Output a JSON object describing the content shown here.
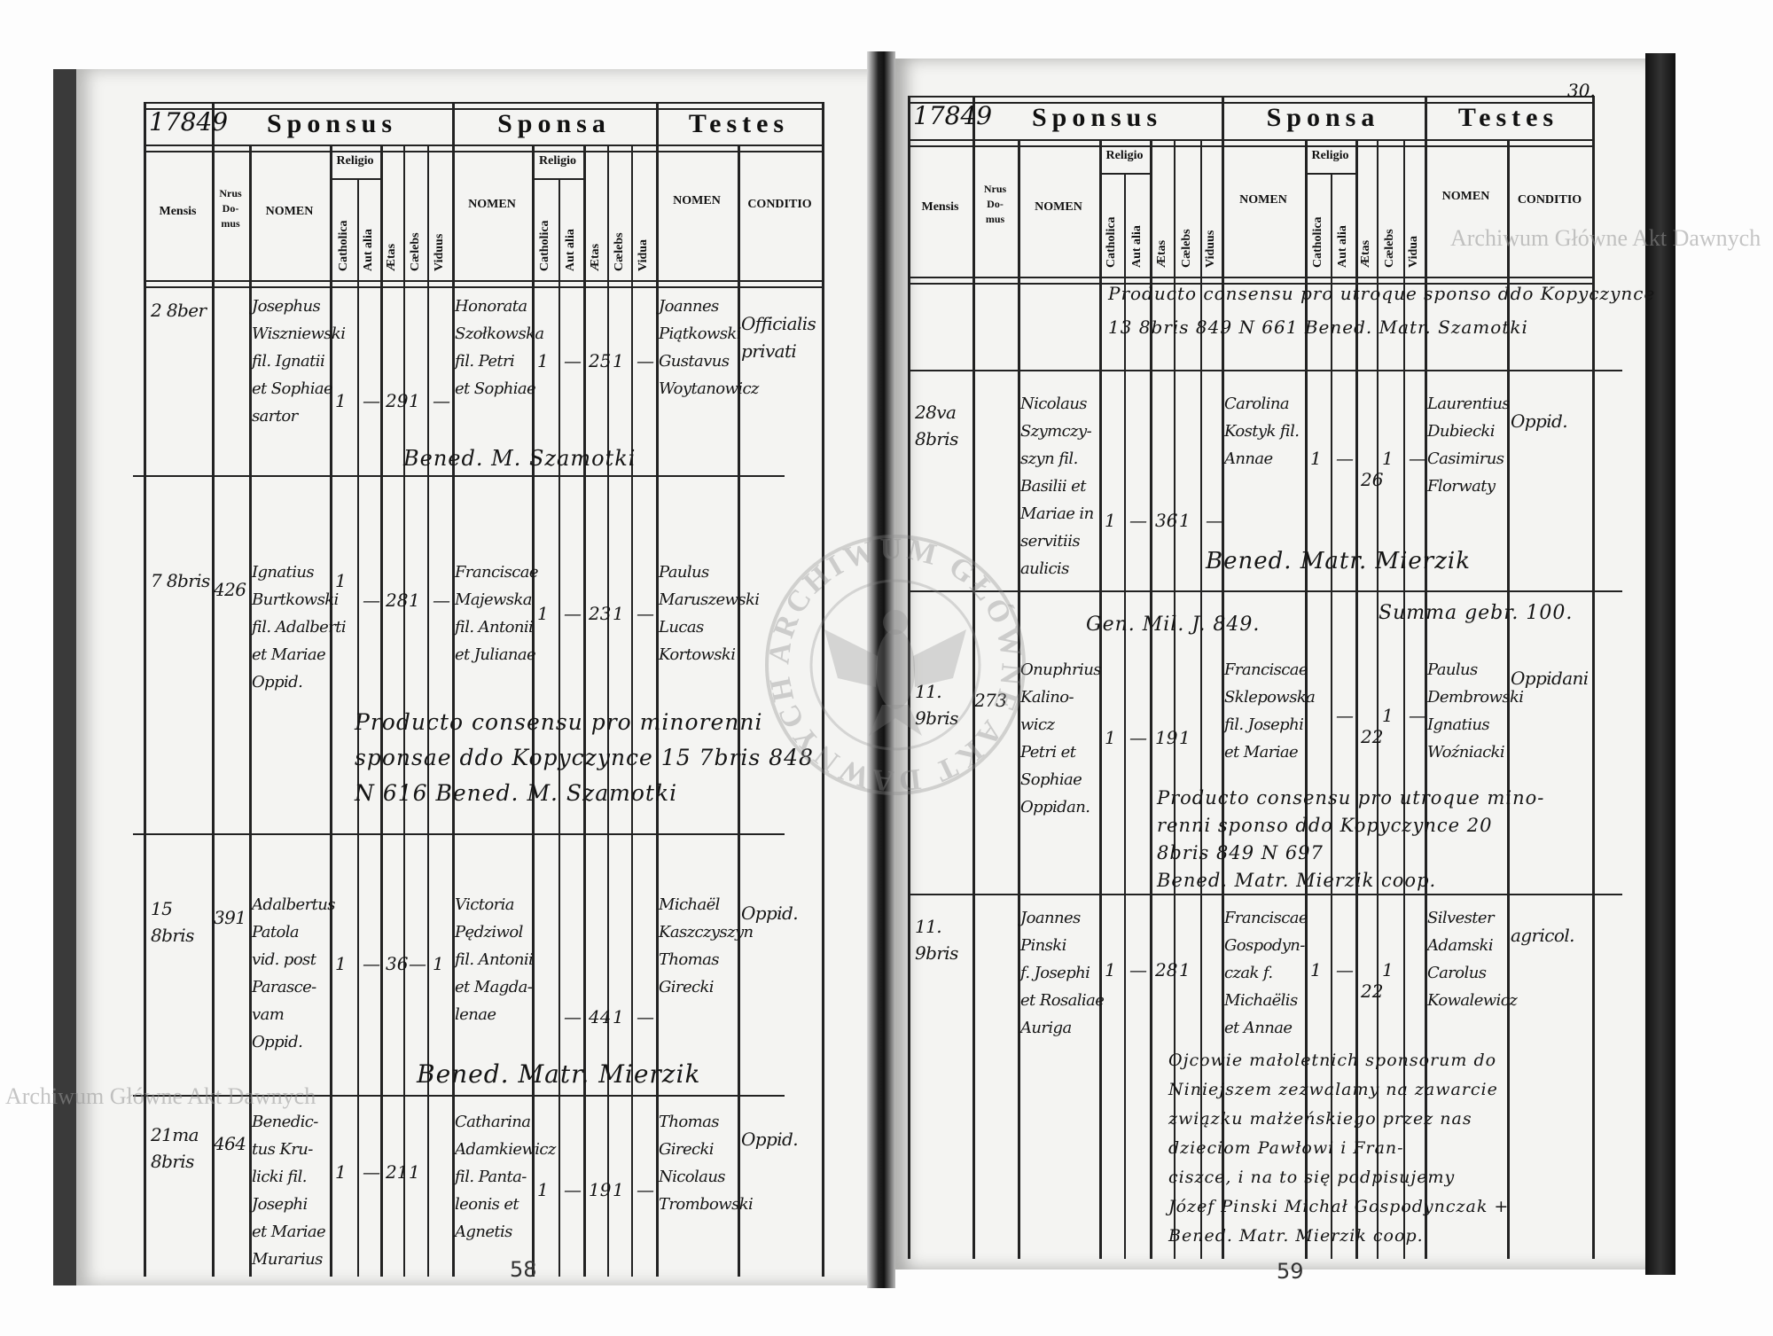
{
  "watermark": "Archiwum Główne Akt Dawnych",
  "stamp_text": "ARCHIWUM GŁÓWNE AKT DAWNYCH",
  "header": {
    "year": "17849",
    "sponsus": "Sponsus",
    "sponsa": "Sponsa",
    "testes": "Testes",
    "mensis": "Mensis",
    "nrus_domus": "Nrus\nDo-\nmus",
    "nomen": "NOMEN",
    "religio": "Religio",
    "catholica": "Catholica",
    "aut_alia": "Aut alia",
    "aetas": "Ætas",
    "caelebs": "Cælebs",
    "viduus": "Viduus",
    "vidua": "Vidua",
    "conditio": "CONDITIO"
  },
  "left_page": {
    "page_number": "58",
    "entries": [
      {
        "mensis": "2 8ber",
        "nrus": "",
        "sponsus": "Josephus\nWiszniewski\nfil. Ignatii\net Sophiae\nsartor",
        "sponsus_marks": [
          "1",
          "—",
          "29",
          "1",
          "—"
        ],
        "sponsa": "Honorata\nSzołkowska\nfil. Petri\net Sophiae",
        "sponsa_marks": [
          "1",
          "—",
          "25",
          "1",
          "—"
        ],
        "testes": "Joannes\nPiątkowski\nGustavus\nWoytanowicz",
        "conditio": "Officialis\nprivati"
      },
      {
        "mensis": "7 8bris",
        "nrus": "426",
        "sponsus": "Ignatius\nBurtkowski\nfil. Adalberti\net Mariae\nOppid.",
        "sponsus_marks": [
          "1",
          "—",
          "28",
          "1",
          "—"
        ],
        "sponsa": "Franciscae\nMajewska\nfil. Antonii\net Julianae",
        "sponsa_marks": [
          "1",
          "—",
          "23",
          "1",
          "—"
        ],
        "testes": "Paulus\nMaruszewski\nLucas\nKortowski",
        "conditio": ""
      },
      {
        "mensis": "15 8bris",
        "nrus": "391",
        "sponsus": "Adalbertus\nPatola\nvid. post\nParasce-\nvam\nOppid.",
        "sponsus_marks": [
          "1",
          "—",
          "36",
          "—",
          "1"
        ],
        "sponsa": "Victoria\nPędziwol\nfil. Antonii\net Magda-\nlenae",
        "sponsa_marks": [
          "",
          "—",
          "44",
          "1",
          "—"
        ],
        "testes": "Michaël\nKaszczyszyn\nThomas\nGirecki",
        "conditio": "Oppid."
      },
      {
        "mensis": "21ma 8bris",
        "nrus": "464",
        "sponsus": "Benedic-\ntus Kru-\nlicki fil.\nJosephi\net Mariae\nMurarius",
        "sponsus_marks": [
          "1",
          "—",
          "21",
          "1",
          ""
        ],
        "sponsa": "Catharina\nAdamkiewicz\nfil. Panta-\nleonis et\nAgnetis",
        "sponsa_marks": [
          "1",
          "—",
          "19",
          "1",
          "—"
        ],
        "testes": "Thomas\nGirecki\nNicolaus\nTrombowski",
        "conditio": "Oppid."
      }
    ],
    "notes": [
      "Bened. M. Szamotki",
      "Producto consensu pro minorenni\nsponsae ddo Kopyczynce 15 7bris 848\nN 616   Bened. M. Szamotki",
      "Bened. Matr. Mierzik"
    ]
  },
  "right_page": {
    "page_number": "59",
    "folio": "30.",
    "entries": [
      {
        "mensis": "28va\n8bris",
        "nrus": "",
        "sponsus": "Nicolaus\nSzymczy-\nszyn fil.\nBasilii et\nMariae in\nservitiis\naulicis",
        "sponsus_marks": [
          "1",
          "—",
          "36",
          "1",
          "—"
        ],
        "sponsa": "Carolina\nKostyk fil.\nAnnae",
        "sponsa_marks": [
          "1",
          "—",
          "26",
          "1",
          "—"
        ],
        "testes": "Laurentius\nDubiecki\nCasimirus\nFlorwaty",
        "conditio": "Oppid."
      },
      {
        "mensis": "11.\n9bris",
        "nrus": "273",
        "sponsus": "Onuphrius\nKalino-\nwicz\nPetri et\nSophiae\nOppidan.",
        "sponsus_marks": [
          "1",
          "—",
          "19",
          "1",
          ""
        ],
        "sponsa": "Franciscae\nSklepowska\nfil. Josephi\net Mariae",
        "sponsa_marks": [
          "",
          "—",
          "22",
          "1",
          "—"
        ],
        "testes": "Paulus\nDembrowski\nIgnatius\nWoźniacki",
        "conditio": "Oppidani"
      },
      {
        "mensis": "11.\n9bris",
        "nrus": "",
        "sponsus": "Joannes\nPinski\nf. Josephi\net Rosaliae\nAuriga",
        "sponsus_marks": [
          "1",
          "—",
          "28",
          "1",
          ""
        ],
        "sponsa": "Franciscae\nGospodyn-\nczak f.\nMichaëlis\net Annae",
        "sponsa_marks": [
          "1",
          "—",
          "22",
          "1",
          ""
        ],
        "testes": "Silvester\nAdamski\nCarolus\nKowalewicz",
        "conditio": "agricol."
      }
    ],
    "notes": [
      "Producto consensu pro utroque sponso ddo Kopyczynce\n13 8bris 849  N 661  Bened. Matr. Szamotki",
      "Bened. Matr. Mierzik",
      "Gen. Mil. J. 849.",
      "Summa gebr. 100.",
      "Producto consensu pro utroque mino-\nrenni sponso ddo Kopyczynce 20\n8bris 849  N 697\nBened. Matr. Mierzik coop.",
      "Ojcowie małoletnich sponsorum do\nNiniejszem zezwalamy na zawarcie\nzwiązku małżeńskiego przez nas\ndzieciom Pawłowi i Fran-\nciszce, i na to się podpisujemy\nJózef Pinski   Michał Gospodynczak +\nBened. Matr. Mierzik coop."
    ]
  }
}
